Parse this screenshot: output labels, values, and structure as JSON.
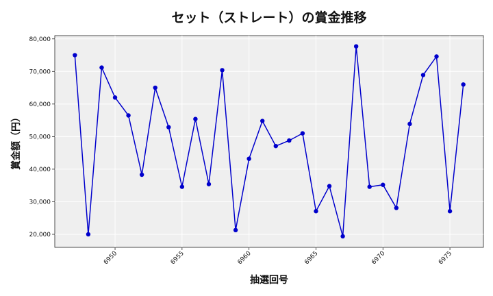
{
  "chart_data": {
    "type": "line",
    "title": "セット（ストレート）の賞金推移",
    "xlabel": "抽選回号",
    "ylabel": "賞金額（円）",
    "xlim": [
      6945.5,
      6977.5
    ],
    "ylim": [
      16000,
      81000
    ],
    "x_ticks": [
      6950,
      6955,
      6960,
      6965,
      6970,
      6975
    ],
    "x_tick_labels": [
      "6950",
      "6955",
      "6960",
      "6965",
      "6970",
      "6975"
    ],
    "y_ticks": [
      20000,
      30000,
      40000,
      50000,
      60000,
      70000,
      80000
    ],
    "y_tick_labels": [
      "20,000",
      "30,000",
      "40,000",
      "50,000",
      "60,000",
      "70,000",
      "80,000"
    ],
    "grid": true,
    "series": [
      {
        "color": "#0000cc",
        "x": [
          6947,
          6948,
          6949,
          6950,
          6951,
          6952,
          6953,
          6954,
          6955,
          6956,
          6957,
          6958,
          6959,
          6960,
          6961,
          6962,
          6963,
          6964,
          6965,
          6966,
          6967,
          6968,
          6969,
          6970,
          6971,
          6972,
          6973,
          6974,
          6975,
          6976
        ],
        "values": [
          75000,
          20000,
          71200,
          62000,
          56500,
          38300,
          65000,
          52900,
          34600,
          55400,
          35400,
          70400,
          21300,
          43200,
          54800,
          47100,
          48800,
          51000,
          27100,
          34800,
          19400,
          77700,
          34600,
          35200,
          28100,
          53900,
          68900,
          74600,
          27100,
          66000
        ]
      }
    ]
  }
}
